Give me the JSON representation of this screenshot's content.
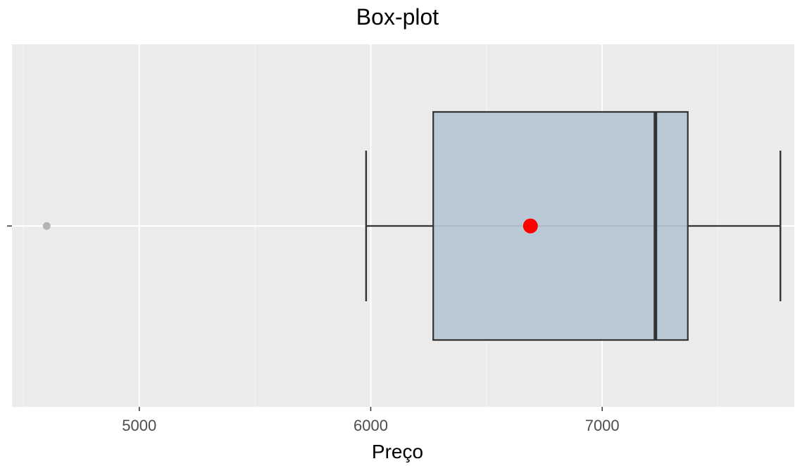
{
  "chart_data": {
    "type": "boxplot",
    "title": "Box-plot",
    "xlabel": "Preço",
    "ylabel": "",
    "orientation": "horizontal",
    "xlim": [
      4450,
      7830
    ],
    "x_ticks": [
      5000,
      6000,
      7000
    ],
    "x_tick_labels": [
      "5000",
      "6000",
      "7000"
    ],
    "grid": true,
    "legend": "none",
    "box": {
      "whisker_low": 5980,
      "q1": 6270,
      "median": 7230,
      "q3": 7370,
      "whisker_high": 7770,
      "mean": 6690,
      "outliers": [
        4600
      ]
    },
    "colors": {
      "panel_background": "#ebebeb",
      "grid_major": "#ffffff",
      "box_fill": "#b4c6d4",
      "box_line": "#333333",
      "mean_point": "#ff0000",
      "outlier_point": "#a9a9a9",
      "tick_label": "#4d4d4d"
    }
  }
}
